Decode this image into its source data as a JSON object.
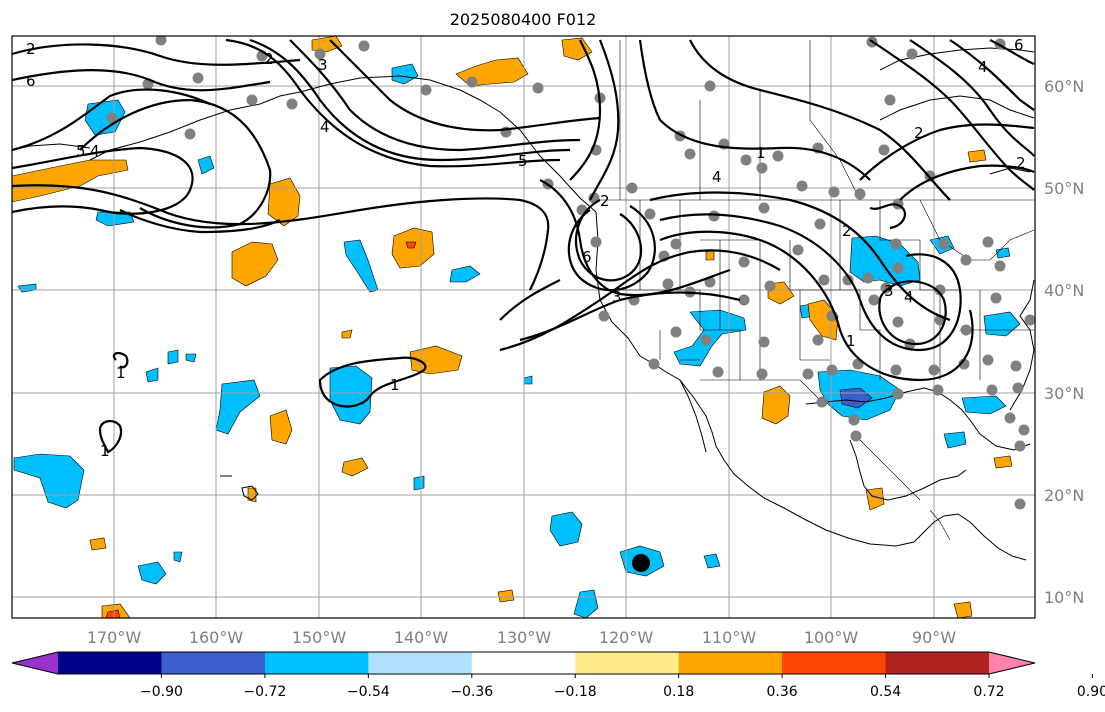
{
  "title": "2025080400 F012",
  "lon_labels": [
    "170°W",
    "160°W",
    "150°W",
    "140°W",
    "130°W",
    "120°W",
    "110°W",
    "100°W",
    "90°W"
  ],
  "lat_labels": [
    "60°N",
    "50°N",
    "40°N",
    "30°N",
    "20°N",
    "10°N"
  ],
  "colorbar": {
    "ticks": [
      "−0.90",
      "−0.72",
      "−0.54",
      "−0.36",
      "−0.18",
      "0.18",
      "0.36",
      "0.54",
      "0.72",
      "0.90"
    ],
    "colors": [
      "#9932cc",
      "#00008b",
      "#3a5fcd",
      "#00bfff",
      "#b0e2ff",
      "#ffffff",
      "#ffec8b",
      "#ffa500",
      "#ff4500",
      "#b22222",
      "#ff82ab"
    ]
  },
  "contour_labels": [
    "2",
    "6",
    "2",
    "3",
    "4",
    "5",
    "4",
    "6",
    "5",
    "2",
    "3",
    "4",
    "1",
    "1",
    "1",
    "1",
    "4",
    "2",
    "3",
    "4",
    "2",
    "6",
    "2",
    "1"
  ]
}
